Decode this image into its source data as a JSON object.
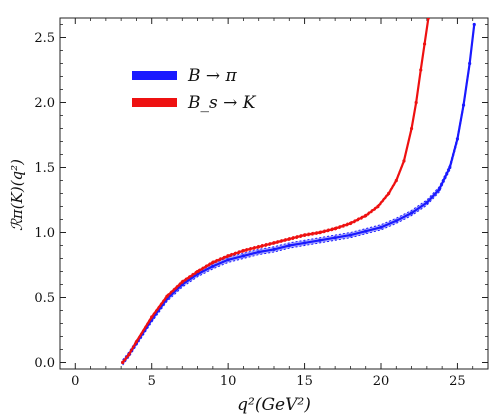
{
  "chart_data": {
    "type": "line",
    "xlabel": "q²(GeV²)",
    "ylabel": "ℛπ(K)(q²)",
    "xlim": [
      -1,
      27
    ],
    "ylim": [
      -0.05,
      2.65
    ],
    "xticks": [
      0,
      5,
      10,
      15,
      20,
      25
    ],
    "yticks": [
      0.0,
      0.5,
      1.0,
      1.5,
      2.0,
      2.5
    ],
    "xtick_labels": [
      "0",
      "5",
      "10",
      "15",
      "20",
      "25"
    ],
    "ytick_labels": [
      "0.0",
      "0.5",
      "1.0",
      "1.5",
      "2.0",
      "2.5"
    ],
    "grid": false,
    "legend_position": "top-left",
    "series": [
      {
        "name": "B → π",
        "color": "#1a1aff",
        "band": 0.02,
        "x": [
          3.1,
          3.5,
          4,
          5,
          6,
          7,
          8,
          9,
          10,
          11,
          12,
          13,
          14,
          15,
          16,
          17,
          18,
          19,
          20,
          21,
          22,
          23,
          23.8,
          24.5,
          25,
          25.4,
          25.8,
          26.1
        ],
        "y": [
          0.0,
          0.06,
          0.15,
          0.33,
          0.49,
          0.6,
          0.68,
          0.74,
          0.79,
          0.82,
          0.85,
          0.87,
          0.9,
          0.92,
          0.94,
          0.96,
          0.98,
          1.01,
          1.04,
          1.09,
          1.15,
          1.23,
          1.33,
          1.5,
          1.72,
          1.98,
          2.3,
          2.6
        ]
      },
      {
        "name": "B_s → K",
        "color": "#ee1111",
        "band": 0.01,
        "x": [
          3.1,
          3.5,
          4,
          5,
          6,
          7,
          8,
          9,
          10,
          11,
          12,
          13,
          14,
          15,
          16,
          17,
          18,
          19,
          19.8,
          20.5,
          21,
          21.5,
          22,
          22.3,
          22.6,
          22.85,
          23.1
        ],
        "y": [
          0.0,
          0.06,
          0.16,
          0.35,
          0.51,
          0.62,
          0.7,
          0.77,
          0.82,
          0.86,
          0.89,
          0.92,
          0.95,
          0.98,
          1.0,
          1.03,
          1.07,
          1.13,
          1.2,
          1.3,
          1.4,
          1.55,
          1.8,
          2.0,
          2.25,
          2.45,
          2.65
        ]
      }
    ]
  }
}
